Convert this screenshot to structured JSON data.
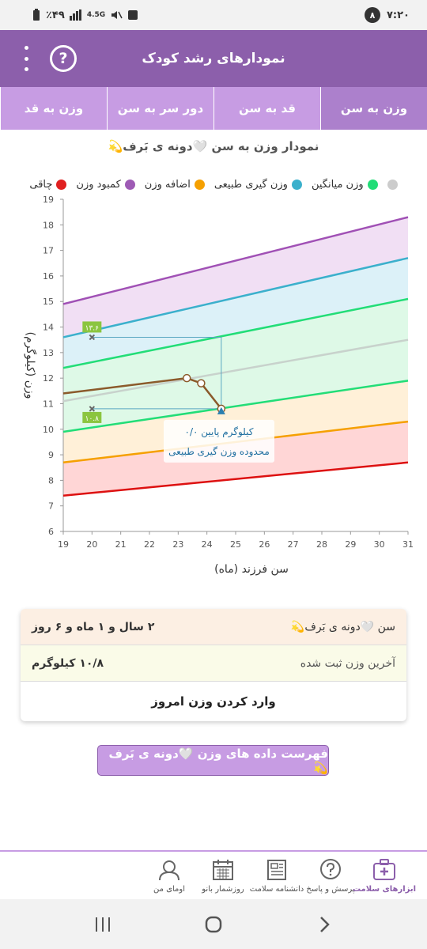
{
  "status_bar": {
    "time": "۷:۲۰",
    "notification_count": "۸",
    "battery": "٪۴۹",
    "network": "4.5G"
  },
  "app_bar": {
    "title": "نمودارهای رشد کودک",
    "help_label": "?"
  },
  "tabs": [
    {
      "label": "وزن به سن",
      "active": true
    },
    {
      "label": "قد به سن",
      "active": false
    },
    {
      "label": "دور سر به سن",
      "active": false
    },
    {
      "label": "وزن به قد",
      "active": false
    }
  ],
  "chart_title": "نمودار وزن به سن 🤍دونه ی بَرف💫",
  "legend": [
    {
      "label": "چاقی",
      "color": "#e02020"
    },
    {
      "label": "کمبود وزن",
      "color": "#9e5bb5"
    },
    {
      "label": "اضافه وزن",
      "color": "#f5a000"
    },
    {
      "label": "وزن گیری طبیعی",
      "color": "#3bb0cc"
    },
    {
      "label": "وزن میانگین",
      "color": "#22dd77"
    },
    {
      "label": "",
      "color": "#cccccc"
    }
  ],
  "chart_data": {
    "type": "line",
    "xlabel": "سن فرزند (ماه)",
    "ylabel": "وزن (کیلوگرم)",
    "xlim": [
      19,
      31
    ],
    "ylim": [
      6,
      19
    ],
    "xticks": [
      19,
      20,
      21,
      22,
      23,
      24,
      25,
      26,
      27,
      28,
      29,
      30,
      31
    ],
    "yticks": [
      6,
      7,
      8,
      9,
      10,
      11,
      12,
      13,
      14,
      15,
      16,
      17,
      18,
      19
    ],
    "reference_lines": [
      {
        "name": "red",
        "color": "#dd1111",
        "x": [
          19,
          31
        ],
        "y": [
          7.4,
          8.7
        ]
      },
      {
        "name": "orange",
        "color": "#f5a000",
        "x": [
          19,
          31
        ],
        "y": [
          8.7,
          10.3
        ]
      },
      {
        "name": "green-low",
        "color": "#22dd77",
        "x": [
          19,
          31
        ],
        "y": [
          9.9,
          11.9
        ]
      },
      {
        "name": "median",
        "color": "#c8d2cc",
        "x": [
          19,
          31
        ],
        "y": [
          11.1,
          13.5
        ]
      },
      {
        "name": "green-high",
        "color": "#22dd77",
        "x": [
          19,
          31
        ],
        "y": [
          12.4,
          15.1
        ]
      },
      {
        "name": "blue",
        "color": "#3bb0cc",
        "x": [
          19,
          31
        ],
        "y": [
          13.6,
          16.7
        ]
      },
      {
        "name": "purple",
        "color": "#a050b5",
        "x": [
          19,
          31
        ],
        "y": [
          14.9,
          18.3
        ]
      }
    ],
    "child_series": {
      "color": "#8b5a2b",
      "x": [
        19,
        23.3,
        23.8,
        24.5
      ],
      "y": [
        11.4,
        12.0,
        11.8,
        10.8
      ]
    },
    "current_point": {
      "x": 24.5,
      "y": 10.8
    },
    "range_markers": [
      {
        "x": 20,
        "y": 13.6,
        "label": "۱۳.۶"
      },
      {
        "x": 20,
        "y": 10.8,
        "label": "۱۰.۸"
      }
    ],
    "annotation": {
      "line1": "۰/۰ کیلوگرم پایین",
      "line2": "محدوده وزن گیری طبیعی"
    }
  },
  "info_card": {
    "age_label": "سن 🤍دونه ی بَرف💫",
    "age_value": "۲ سال و ۱ ماه و ۶ روز",
    "weight_label": "آخرین وزن ثبت شده",
    "weight_value": "۱۰/۸ کیلوگرم",
    "enter_weight": "وارد کردن وزن امروز"
  },
  "list_button": "فهرست داده های وزن 🤍دونه ی بَرف💫",
  "bottom_nav": [
    {
      "label": "ابزارهای سلامت",
      "icon": "medkit-icon",
      "active": true
    },
    {
      "label": "پرسش و پاسخ",
      "icon": "question-bubble-icon",
      "active": false
    },
    {
      "label": "دانشنامه سلامت",
      "icon": "newspaper-icon",
      "active": false
    },
    {
      "label": "روزشمار بانو",
      "icon": "calendar-icon",
      "active": false
    },
    {
      "label": "اومای من",
      "icon": "user-icon",
      "active": false
    }
  ]
}
